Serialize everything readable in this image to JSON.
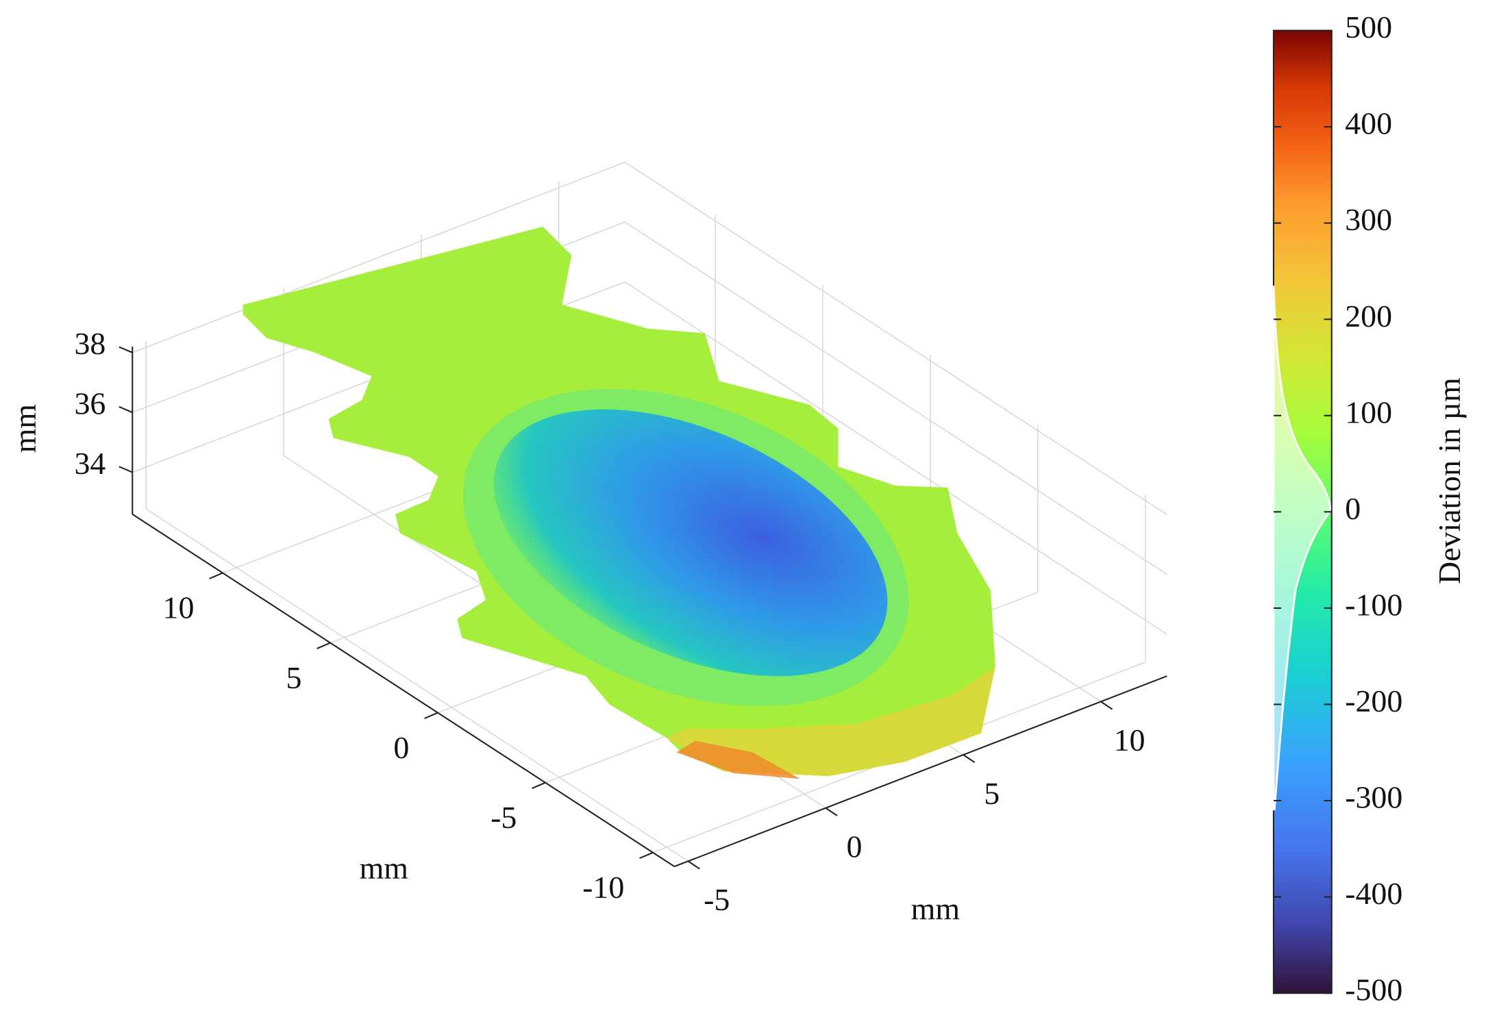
{
  "chart_data": {
    "type": "scatter3d",
    "xlabel": "mm",
    "ylabel": "mm",
    "zlabel": "mm",
    "xlim": [
      -5.5,
      12.4
    ],
    "ylim": [
      -11,
      14.2
    ],
    "zlim": [
      32.6,
      38.2
    ],
    "xticks": [
      -5,
      0,
      5,
      10
    ],
    "yticks": [
      -10,
      -5,
      0,
      5,
      10
    ],
    "zticks": [
      34,
      36,
      38
    ],
    "grid": true,
    "colorbar": {
      "label": "Deviation in µm",
      "lim": [
        -500,
        500
      ],
      "ticks": [
        -500,
        -400,
        -300,
        -200,
        -100,
        0,
        100,
        200,
        300,
        400,
        500
      ]
    }
  }
}
